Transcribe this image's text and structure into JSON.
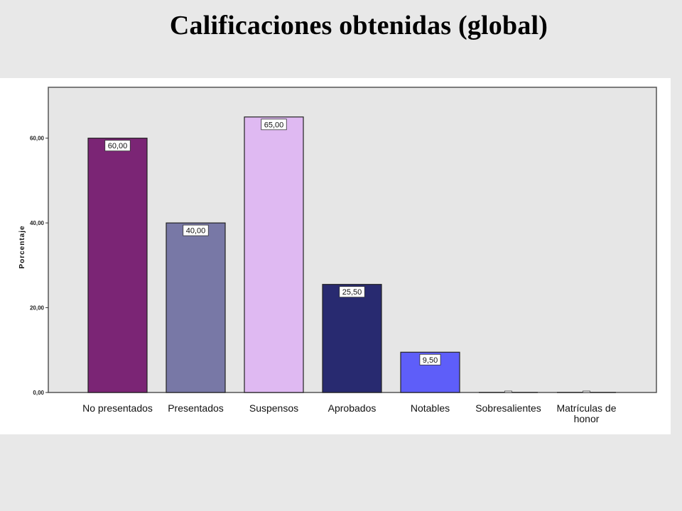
{
  "title": "Calificaciones obtenidas (global)",
  "chart_data": {
    "type": "bar",
    "title": "Calificaciones obtenidas (global)",
    "xlabel": "",
    "ylabel": "Porcentaje",
    "ylim": [
      0,
      72
    ],
    "yticks": [
      0,
      20,
      40,
      60
    ],
    "ytick_labels": [
      "0,00",
      "20,00",
      "40,00",
      "60,00"
    ],
    "grid": false,
    "categories": [
      "No presentados",
      "Presentados",
      "Suspensos",
      "Aprobados",
      "Notables",
      "Sobresalientes",
      "Matrículas de honor"
    ],
    "category_lines": [
      [
        "No presentados"
      ],
      [
        "Presentados"
      ],
      [
        "Suspensos"
      ],
      [
        "Aprobados"
      ],
      [
        "Notables"
      ],
      [
        "Sobresalientes"
      ],
      [
        "Matrículas de",
        "honor"
      ]
    ],
    "values": [
      60.0,
      40.0,
      65.0,
      25.5,
      9.5,
      0.0,
      0.0
    ],
    "value_labels": [
      "60,00",
      "40,00",
      "65,00",
      "25,50",
      "9,50",
      "",
      ""
    ],
    "colors": [
      "#7b2575",
      "#7878a6",
      "#dfb9f2",
      "#282a70",
      "#5e5ef9",
      "#5e5ef9",
      "#5e5ef9"
    ],
    "plot_background": "#e6e6e6"
  }
}
